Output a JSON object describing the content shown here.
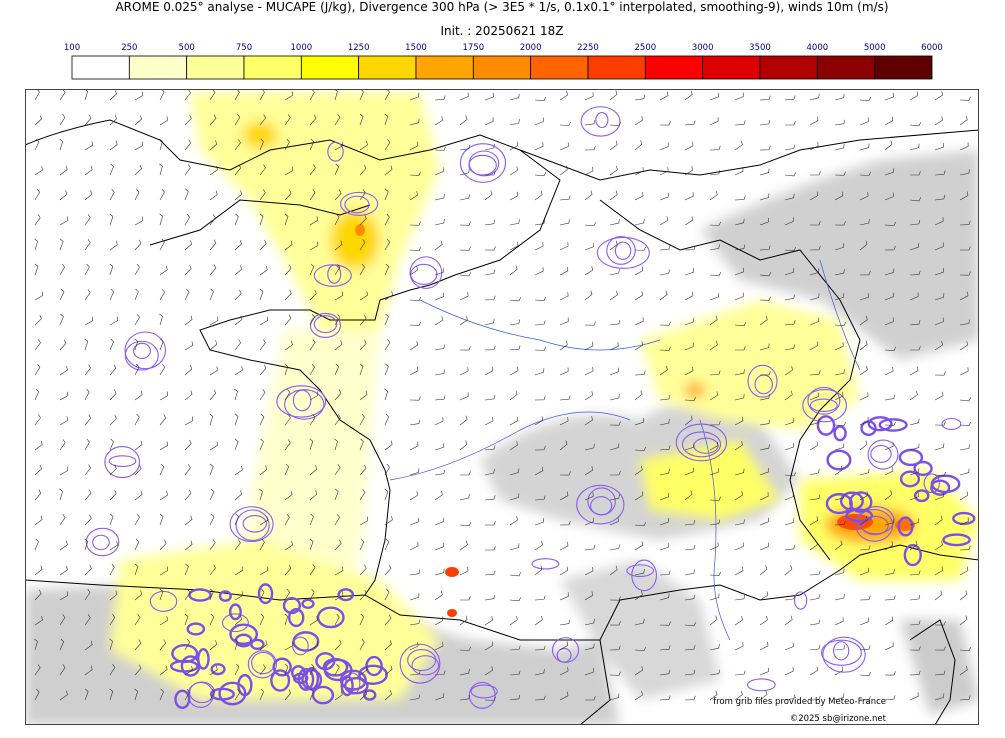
{
  "header": {
    "title": "AROME 0.025° analyse - MUCAPE (J/kg), Divergence 300 hPa (> 3E5 * 1/s, 0.1x0.1° interpolated, smoothing-9), winds 10m (m/s)",
    "init": "Init. : 20250621 18Z"
  },
  "colorbar": {
    "ticks": [
      100,
      250,
      500,
      750,
      1000,
      1250,
      1500,
      1750,
      2000,
      2250,
      2500,
      3000,
      3500,
      4000,
      5000,
      6000
    ],
    "colors": [
      "#ffffff",
      "#ffffcc",
      "#ffff99",
      "#ffff66",
      "#ffff00",
      "#ffd700",
      "#ffa500",
      "#ff8c00",
      "#ff6400",
      "#ff3c00",
      "#ff0000",
      "#dd0000",
      "#b00000",
      "#8b0000",
      "#5e0000"
    ]
  },
  "credits": {
    "source": "from grib files provided by Meteo-France",
    "copyright": "©2025 sb@irizone.net"
  }
}
